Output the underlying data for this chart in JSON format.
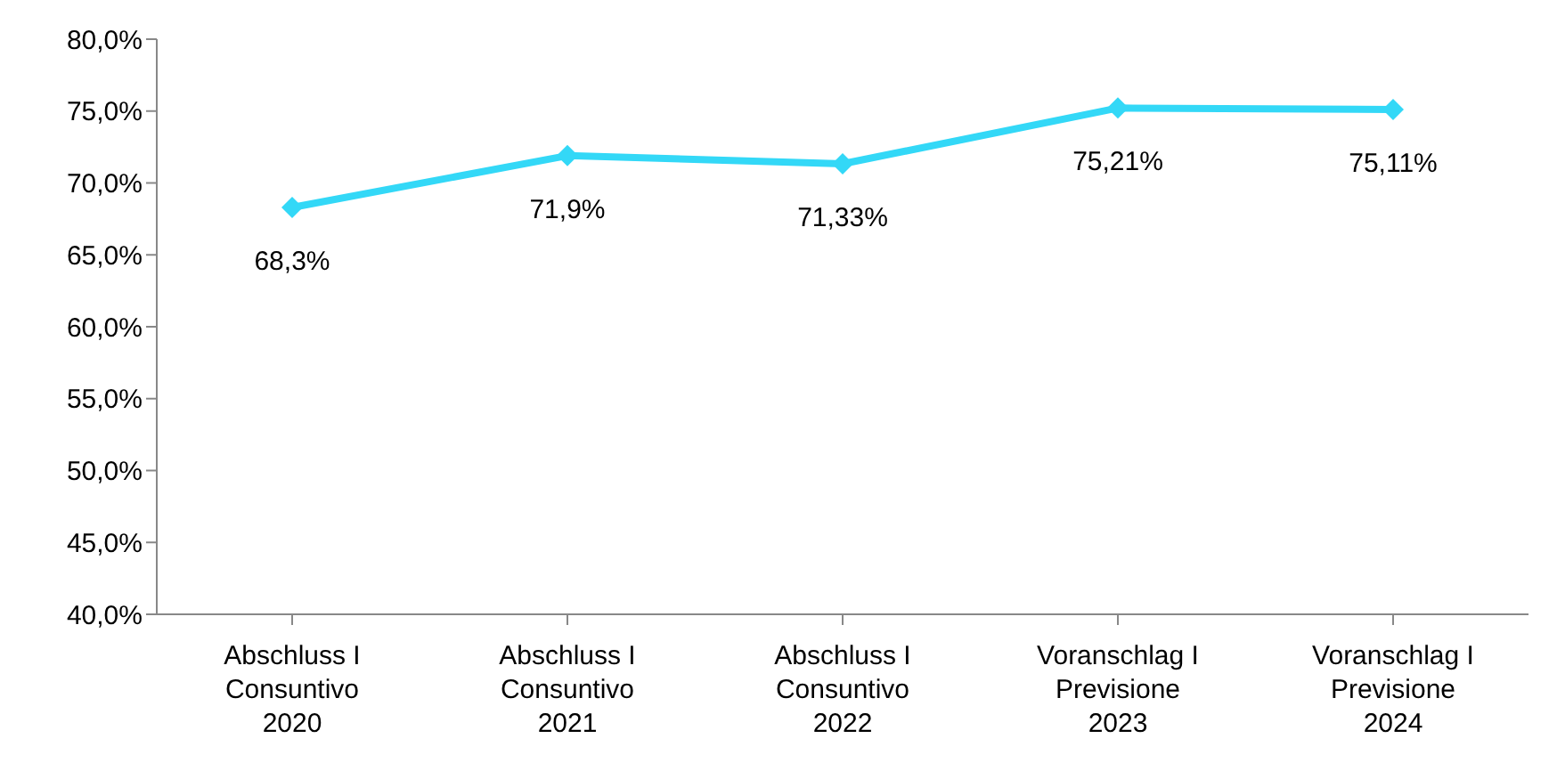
{
  "chart_data": {
    "type": "line",
    "categories": [
      "Abschluss I\nConsuntivo\n2020",
      "Abschluss I\nConsuntivo\n2021",
      "Abschluss I\nConsuntivo\n2022",
      "Voranschlag I\nPrevisione\n2023",
      "Voranschlag I\nPrevisione\n2024"
    ],
    "values": [
      68.3,
      71.9,
      71.33,
      75.21,
      75.11
    ],
    "value_labels": [
      "68,3%",
      "71,9%",
      "71,33%",
      "75,21%",
      "75,11%"
    ],
    "color": "#33d8f7",
    "marker": "diamond",
    "line_style": "solid",
    "grid": false,
    "legend": false,
    "ylim": [
      40,
      80
    ],
    "yticks": [
      {
        "value": 40,
        "label": "40,0%"
      },
      {
        "value": 45,
        "label": "45,0%"
      },
      {
        "value": 50,
        "label": "50,0%"
      },
      {
        "value": 55,
        "label": "55,0%"
      },
      {
        "value": 60,
        "label": "60,0%"
      },
      {
        "value": 65,
        "label": "65,0%"
      },
      {
        "value": 70,
        "label": "70,0%"
      },
      {
        "value": 75,
        "label": "75,0%"
      },
      {
        "value": 80,
        "label": "80,0%"
      }
    ]
  }
}
